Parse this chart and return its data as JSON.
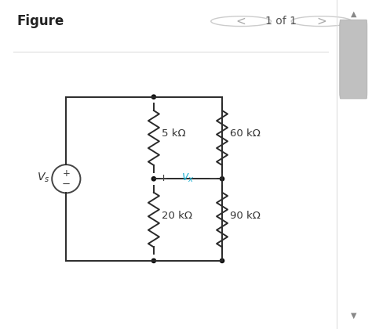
{
  "bg_color": "#ffffff",
  "header_text": "Figure",
  "nav_text": "1 of 1",
  "circuit": {
    "r1_label": "5 kΩ",
    "r2_label": "20 kΩ",
    "r3_label": "60 kΩ",
    "r4_label": "90 kΩ",
    "vx_color": "#29b6d6",
    "wire_color": "#2a2a2a",
    "resistor_color": "#2a2a2a",
    "node_color": "#111111",
    "circle_color": "#444444",
    "source_plus": "+",
    "source_minus": "−",
    "vs_color": "#333333",
    "label_color": "#333333",
    "pm_color": "#444444"
  },
  "scrollbar": {
    "track_color": "#e8e8e8",
    "handle_color": "#b0b0b0",
    "border_color": "#cccccc"
  }
}
